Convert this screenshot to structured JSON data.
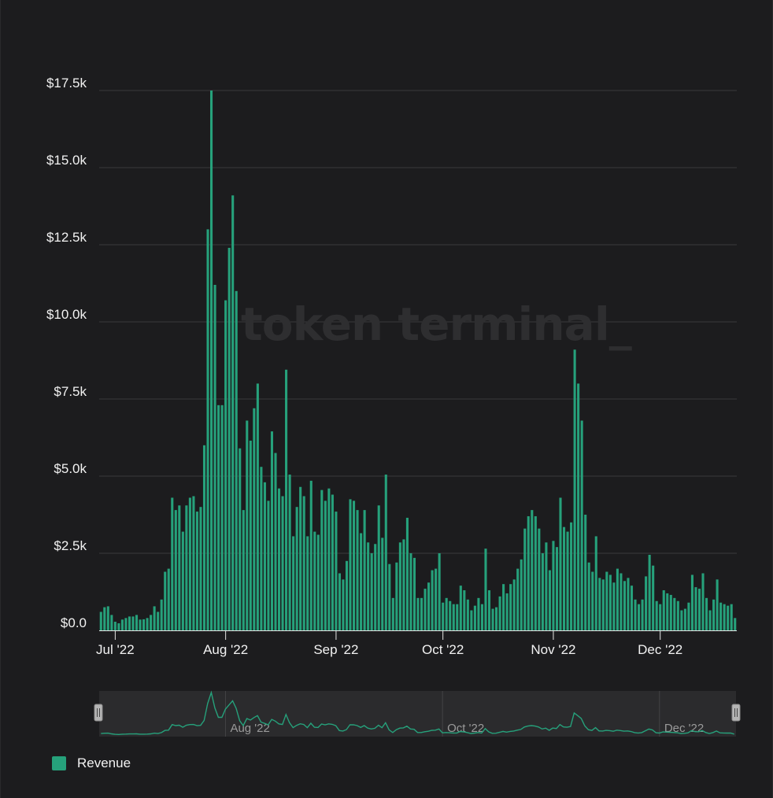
{
  "watermark": "token terminal_",
  "colors": {
    "bar": "#26a17b",
    "grid": "#3a3a3c",
    "axis": "#e6e6e6",
    "navigator_bg": "#2b2b2d",
    "navigator_mask": "#353537",
    "navigator_line": "#26a17b"
  },
  "legend": {
    "items": [
      {
        "label": "Revenue",
        "color": "#26a17b"
      }
    ]
  },
  "navigator": {
    "labels": [
      "Aug '22",
      "Oct '22",
      "Dec '22"
    ],
    "handles": [
      "left-handle",
      "right-handle"
    ]
  },
  "chart_data": {
    "type": "bar",
    "title": "",
    "xlabel": "",
    "ylabel": "",
    "ylim": [
      0,
      17500
    ],
    "y_ticks": [
      {
        "value": 0,
        "label": "$0.0"
      },
      {
        "value": 2500,
        "label": "$2.5k"
      },
      {
        "value": 5000,
        "label": "$5.0k"
      },
      {
        "value": 7500,
        "label": "$7.5k"
      },
      {
        "value": 10000,
        "label": "$10.0k"
      },
      {
        "value": 12500,
        "label": "$12.5k"
      },
      {
        "value": 15000,
        "label": "$15.0k"
      },
      {
        "value": 17500,
        "label": "$17.5k"
      }
    ],
    "x_start": "2022-06-27",
    "x_ticks": [
      {
        "date": "2022-07-01",
        "label": "Jul '22"
      },
      {
        "date": "2022-08-01",
        "label": "Aug '22"
      },
      {
        "date": "2022-09-01",
        "label": "Sep '22"
      },
      {
        "date": "2022-10-01",
        "label": "Oct '22"
      },
      {
        "date": "2022-11-01",
        "label": "Nov '22"
      },
      {
        "date": "2022-12-01",
        "label": "Dec '22"
      }
    ],
    "grid": true,
    "legend_position": "bottom-left",
    "series": [
      {
        "name": "Revenue",
        "values": [
          600,
          750,
          780,
          500,
          280,
          230,
          350,
          400,
          450,
          450,
          500,
          350,
          360,
          400,
          500,
          780,
          600,
          1000,
          1900,
          2000,
          4300,
          3900,
          4050,
          3200,
          4050,
          4300,
          4350,
          3850,
          4000,
          6000,
          13000,
          17500,
          11200,
          7300,
          7300,
          10700,
          12400,
          14100,
          11000,
          5900,
          3900,
          6800,
          6150,
          7200,
          8000,
          5300,
          4800,
          4200,
          6450,
          5750,
          4600,
          4350,
          8450,
          5050,
          3050,
          4000,
          4650,
          4350,
          3050,
          4850,
          3200,
          3100,
          4550,
          4200,
          4600,
          4400,
          3850,
          1850,
          1650,
          2250,
          4250,
          4200,
          3900,
          3150,
          3900,
          2850,
          2500,
          2800,
          4050,
          3000,
          5050,
          2150,
          1050,
          2200,
          2850,
          2950,
          3650,
          2500,
          2350,
          1050,
          1050,
          1350,
          1550,
          1950,
          2000,
          2500,
          900,
          1050,
          950,
          850,
          850,
          1450,
          1300,
          1000,
          650,
          800,
          1050,
          850,
          2650,
          1300,
          700,
          750,
          1100,
          1500,
          1200,
          1500,
          1650,
          2000,
          2300,
          3300,
          3700,
          3900,
          3700,
          3300,
          2500,
          2850,
          1950,
          2900,
          2700,
          4300,
          3350,
          3200,
          3500,
          9100,
          8000,
          6800,
          3750,
          2200,
          1900,
          3050,
          1700,
          1650,
          1900,
          1800,
          1550,
          2000,
          1850,
          1600,
          1700,
          1450,
          1000,
          850,
          1000,
          1750,
          2450,
          2100,
          950,
          850,
          1300,
          1200,
          1150,
          1050,
          950,
          650,
          700,
          900,
          1800,
          1400,
          1350,
          1850,
          1050,
          650,
          1000,
          1650,
          900,
          850,
          800,
          850,
          400
        ]
      }
    ]
  }
}
